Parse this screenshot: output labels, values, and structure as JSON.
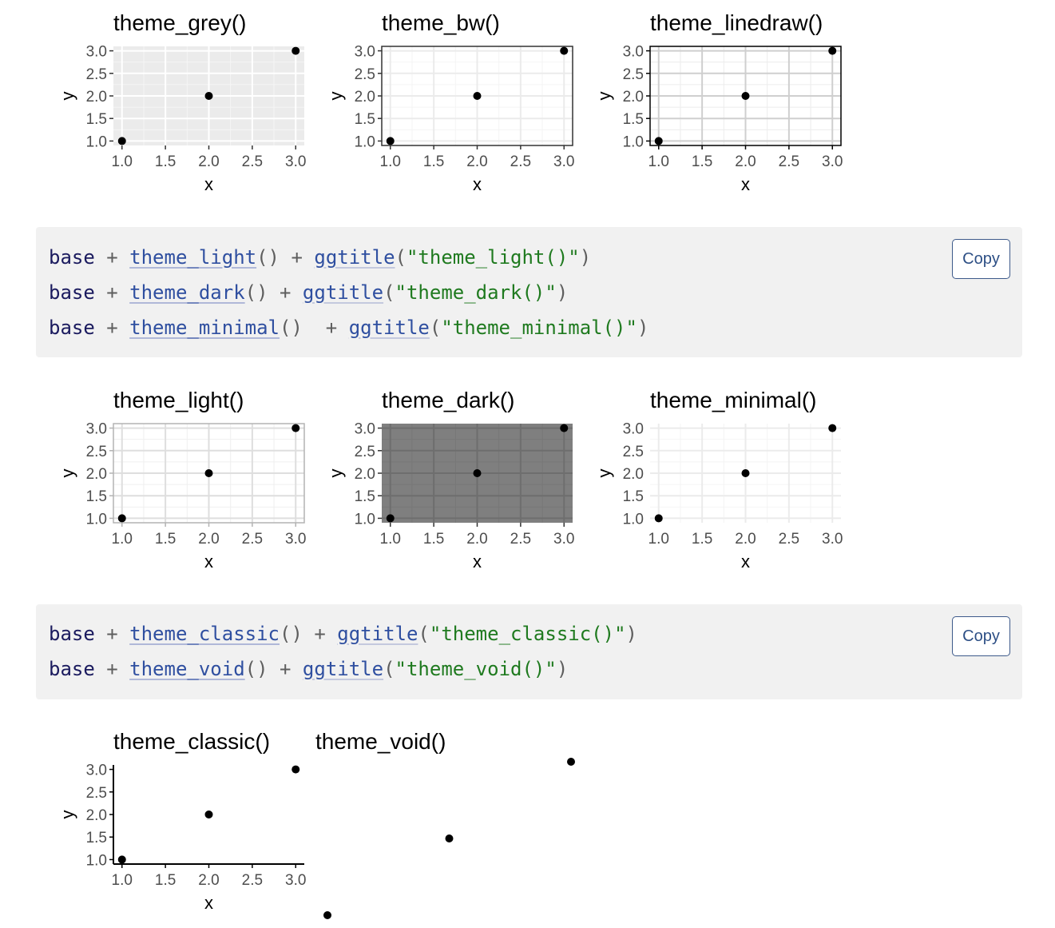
{
  "row1": [
    {
      "title": "theme_grey()",
      "theme": "grey"
    },
    {
      "title": "theme_bw()",
      "theme": "bw"
    },
    {
      "title": "theme_linedraw()",
      "theme": "linedraw"
    }
  ],
  "row2": [
    {
      "title": "theme_light()",
      "theme": "light"
    },
    {
      "title": "theme_dark()",
      "theme": "dark"
    },
    {
      "title": "theme_minimal()",
      "theme": "minimal"
    }
  ],
  "row3": [
    {
      "title": "theme_classic()",
      "theme": "classic"
    },
    {
      "title": "theme_void()",
      "theme": "void"
    }
  ],
  "code1": {
    "copy_label": "Copy",
    "lines": [
      [
        {
          "t": "base",
          "c": "id"
        },
        {
          "t": " + ",
          "c": "op"
        },
        {
          "t": "theme_light",
          "c": "fn"
        },
        {
          "t": "()",
          "c": "p"
        },
        {
          "t": " + ",
          "c": "op"
        },
        {
          "t": "ggtitle",
          "c": "fn2"
        },
        {
          "t": "(",
          "c": "p"
        },
        {
          "t": "\"theme_light()\"",
          "c": "str"
        },
        {
          "t": ")",
          "c": "p"
        }
      ],
      [
        {
          "t": "base",
          "c": "id"
        },
        {
          "t": " + ",
          "c": "op"
        },
        {
          "t": "theme_dark",
          "c": "fn"
        },
        {
          "t": "()",
          "c": "p"
        },
        {
          "t": " + ",
          "c": "op"
        },
        {
          "t": "ggtitle",
          "c": "fn2"
        },
        {
          "t": "(",
          "c": "p"
        },
        {
          "t": "\"theme_dark()\"",
          "c": "str"
        },
        {
          "t": ")",
          "c": "p"
        }
      ],
      [
        {
          "t": "base",
          "c": "id"
        },
        {
          "t": " + ",
          "c": "op"
        },
        {
          "t": "theme_minimal",
          "c": "fn"
        },
        {
          "t": "()",
          "c": "p"
        },
        {
          "t": "  + ",
          "c": "op"
        },
        {
          "t": "ggtitle",
          "c": "fn2"
        },
        {
          "t": "(",
          "c": "p"
        },
        {
          "t": "\"theme_minimal()\"",
          "c": "str"
        },
        {
          "t": ")",
          "c": "p"
        }
      ]
    ]
  },
  "code2": {
    "copy_label": "Copy",
    "lines": [
      [
        {
          "t": "base",
          "c": "id"
        },
        {
          "t": " + ",
          "c": "op"
        },
        {
          "t": "theme_classic",
          "c": "fn"
        },
        {
          "t": "()",
          "c": "p"
        },
        {
          "t": " + ",
          "c": "op"
        },
        {
          "t": "ggtitle",
          "c": "fn2"
        },
        {
          "t": "(",
          "c": "p"
        },
        {
          "t": "\"theme_classic()\"",
          "c": "str"
        },
        {
          "t": ")",
          "c": "p"
        }
      ],
      [
        {
          "t": "base",
          "c": "id"
        },
        {
          "t": " + ",
          "c": "op"
        },
        {
          "t": "theme_void",
          "c": "fn"
        },
        {
          "t": "()",
          "c": "p"
        },
        {
          "t": " + ",
          "c": "op"
        },
        {
          "t": "ggtitle",
          "c": "fn2"
        },
        {
          "t": "(",
          "c": "p"
        },
        {
          "t": "\"theme_void()\"",
          "c": "str"
        },
        {
          "t": ")",
          "c": "p"
        }
      ]
    ]
  },
  "chart_data": {
    "type": "scatter",
    "x": [
      1,
      2,
      3
    ],
    "y": [
      1,
      2,
      3
    ],
    "xlabel": "x",
    "ylabel": "y",
    "xlim": [
      1,
      3
    ],
    "ylim": [
      1,
      3
    ],
    "x_ticks": [
      "1.0",
      "1.5",
      "2.0",
      "2.5",
      "3.0"
    ],
    "y_ticks": [
      "1.0",
      "1.5",
      "2.0",
      "2.5",
      "3.0"
    ]
  }
}
